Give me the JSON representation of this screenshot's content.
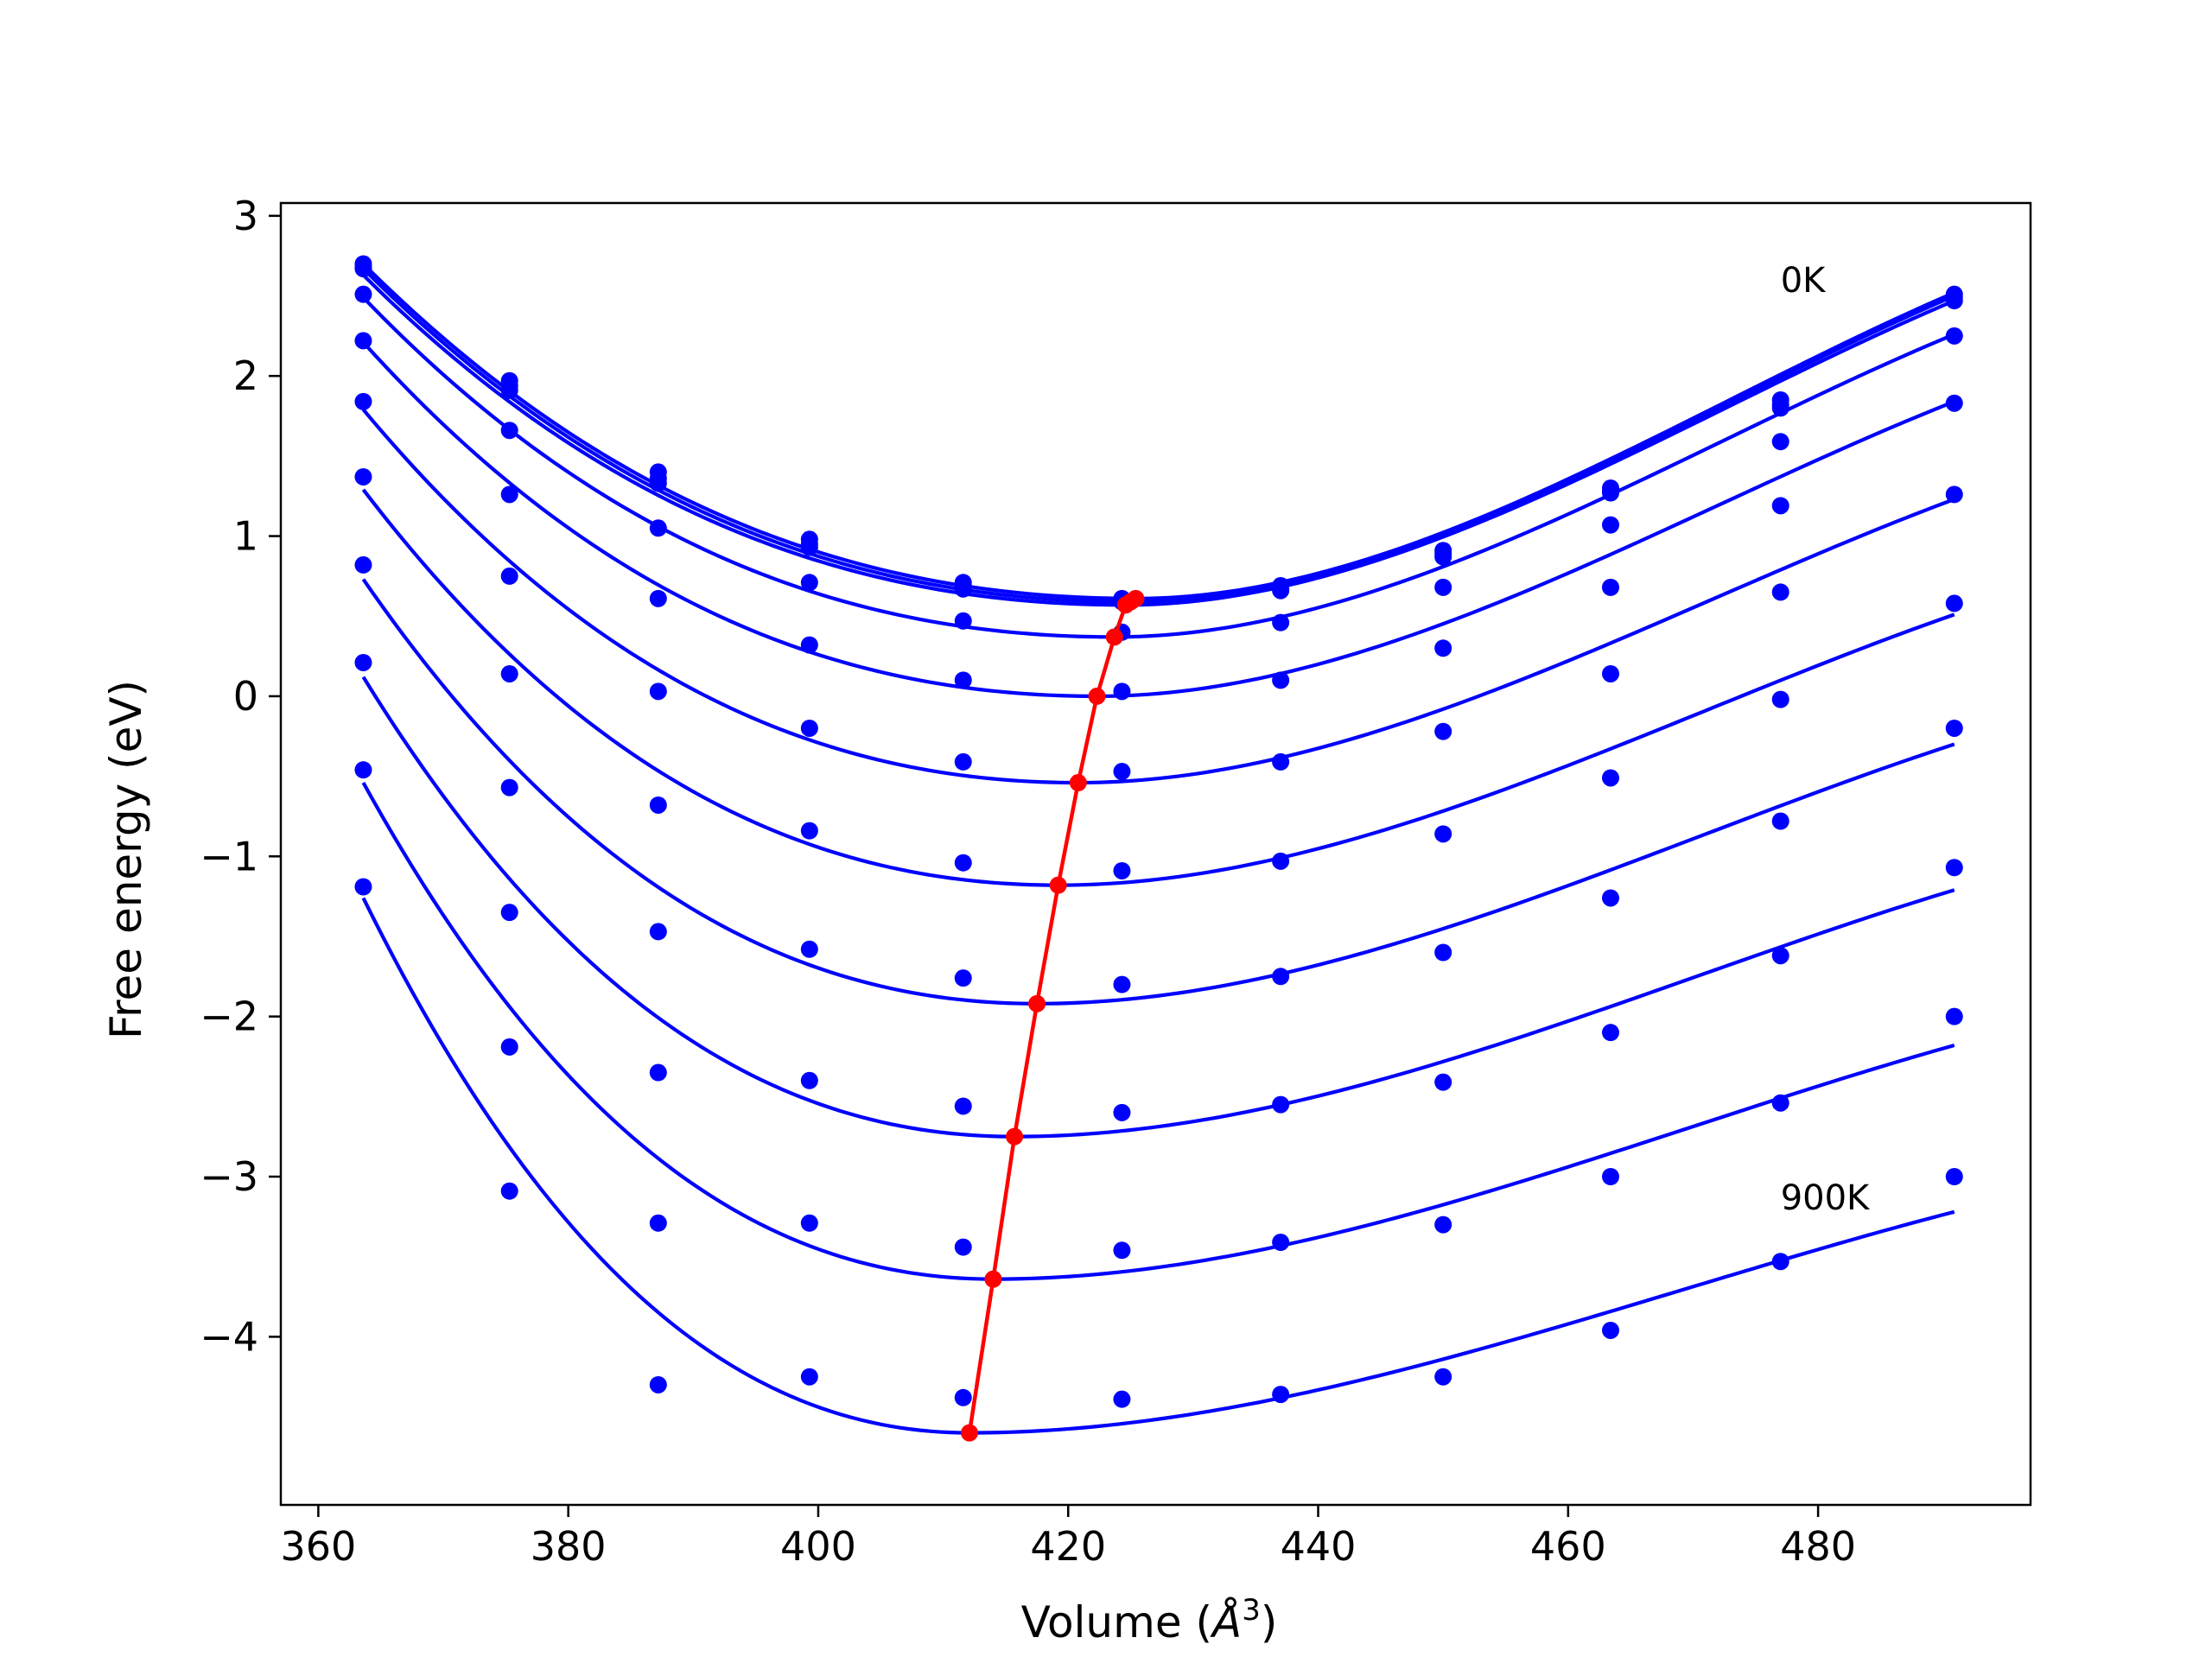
{
  "chart_data": {
    "type": "line",
    "title": "",
    "xlabel": "Volume (",
    "xlabel_unit_base": "Å",
    "xlabel_unit_sup": "3",
    "xlabel_close": ")",
    "ylabel": "Free energy (eV)",
    "xlim": [
      357,
      497
    ],
    "ylim": [
      -5.05,
      3.08
    ],
    "xticks": [
      360,
      380,
      400,
      420,
      440,
      460,
      480
    ],
    "xtick_labels": [
      "360",
      "380",
      "400",
      "420",
      "440",
      "460",
      "480"
    ],
    "yticks": [
      3,
      2,
      1,
      0,
      -1,
      -2,
      -3,
      -4
    ],
    "ytick_labels": [
      "3",
      "2",
      "1",
      "0",
      "−1",
      "−2",
      "−3",
      "−4"
    ],
    "annotations": [
      {
        "text": "0K",
        "x": 477,
        "y": 2.6
      },
      {
        "text": "900K",
        "x": 477,
        "y": -3.13
      }
    ],
    "colors": {
      "points": "#0000ff",
      "fit_lines": "#0000ff",
      "minimum_line": "#ff0000"
    },
    "volumes": [
      363.6,
      375.3,
      387.2,
      399.3,
      411.6,
      424.3,
      437.0,
      450.0,
      463.4,
      477.0,
      490.9
    ],
    "series": [
      {
        "values": [
          2.7,
          1.97,
          1.4,
          0.98,
          0.71,
          0.61,
          0.69,
          0.91,
          1.3,
          1.85,
          2.51
        ],
        "fit_min": [
          425.4,
          0.61
        ],
        "fit_left_end": 2.7,
        "fit_right_end": 2.52
      },
      {
        "values": [
          2.68,
          1.94,
          1.36,
          0.95,
          0.69,
          0.6,
          0.67,
          0.89,
          1.28,
          1.82,
          2.49
        ],
        "fit_min": [
          425.0,
          0.59
        ],
        "fit_left_end": 2.67,
        "fit_right_end": 2.5
      },
      {
        "values": [
          2.67,
          1.91,
          1.33,
          0.93,
          0.67,
          0.59,
          0.66,
          0.87,
          1.27,
          1.8,
          2.47
        ],
        "fit_min": [
          424.6,
          0.57
        ],
        "fit_left_end": 2.63,
        "fit_right_end": 2.47
      },
      {
        "values": [
          2.51,
          1.66,
          1.05,
          0.71,
          0.47,
          0.4,
          0.46,
          0.68,
          1.07,
          1.59,
          2.25
        ],
        "fit_min": [
          423.7,
          0.37
        ],
        "fit_left_end": 2.49,
        "fit_right_end": 2.26
      },
      {
        "values": [
          2.22,
          1.26,
          0.61,
          0.32,
          0.1,
          0.03,
          0.1,
          0.3,
          0.68,
          1.19,
          1.83
        ],
        "fit_min": [
          422.3,
          0.0
        ],
        "fit_left_end": 2.21,
        "fit_right_end": 1.84
      },
      {
        "values": [
          1.84,
          0.75,
          0.03,
          -0.2,
          -0.41,
          -0.47,
          -0.41,
          -0.22,
          0.14,
          0.65,
          1.26
        ],
        "fit_min": [
          420.8,
          -0.54
        ],
        "fit_left_end": 1.79,
        "fit_right_end": 1.23
      },
      {
        "values": [
          1.37,
          0.14,
          -0.68,
          -0.84,
          -1.04,
          -1.09,
          -1.03,
          -0.86,
          -0.51,
          -0.02,
          0.58
        ],
        "fit_min": [
          419.2,
          -1.18
        ],
        "fit_left_end": 1.29,
        "fit_right_end": 0.51
      },
      {
        "values": [
          0.82,
          -0.57,
          -1.47,
          -1.58,
          -1.76,
          -1.8,
          -1.75,
          -1.6,
          -1.26,
          -0.78,
          -0.2
        ],
        "fit_min": [
          417.5,
          -1.92
        ],
        "fit_left_end": 0.73,
        "fit_right_end": -0.3
      },
      {
        "values": [
          0.21,
          -1.35,
          -2.35,
          -2.4,
          -2.56,
          -2.6,
          -2.55,
          -2.41,
          -2.1,
          -1.62,
          -1.07
        ],
        "fit_min": [
          415.7,
          -2.75
        ],
        "fit_left_end": 0.12,
        "fit_right_end": -1.21
      },
      {
        "values": [
          -0.46,
          -2.19,
          -3.29,
          -3.29,
          -3.44,
          -3.46,
          -3.41,
          -3.3,
          -3.0,
          -2.54,
          -2.0
        ],
        "fit_min": [
          414.0,
          -3.64
        ],
        "fit_left_end": -0.54,
        "fit_right_end": -2.18
      },
      {
        "values": [
          -1.19,
          -3.09,
          -4.3,
          -4.25,
          -4.38,
          -4.39,
          -4.36,
          -4.25,
          -3.96,
          -3.53,
          -3.0
        ],
        "fit_min": [
          412.1,
          -4.6
        ],
        "fit_left_end": -1.26,
        "fit_right_end": -3.22
      }
    ],
    "minimum_line": {
      "x": [
        425.4,
        425.0,
        424.6,
        423.7,
        422.3,
        420.8,
        419.2,
        417.5,
        415.7,
        414.0,
        412.1
      ],
      "y": [
        0.61,
        0.59,
        0.57,
        0.37,
        0.0,
        -0.54,
        -1.18,
        -1.92,
        -2.75,
        -3.64,
        -4.6
      ]
    }
  }
}
